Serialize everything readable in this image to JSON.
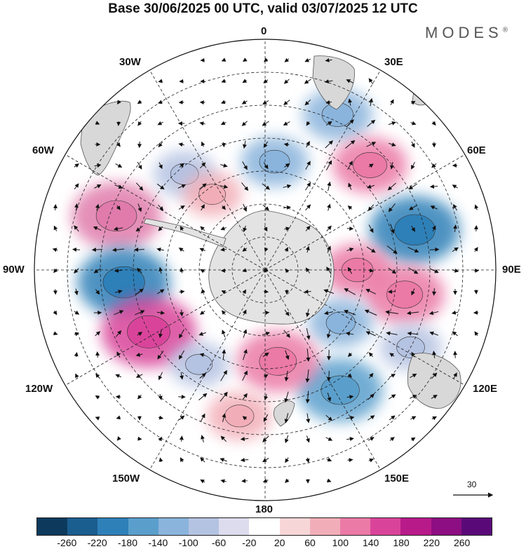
{
  "title": "Base 30/06/2025 00 UTC, valid 03/07/2025 12 UTC",
  "brand": "MODES",
  "brand_mark": "®",
  "longitude_labels": {
    "lon_0": "0",
    "lon_30e": "30E",
    "lon_60e": "60E",
    "lon_90e": "90E",
    "lon_120e": "120E",
    "lon_150e": "150E",
    "lon_180": "180",
    "lon_150w": "150W",
    "lon_120w": "120W",
    "lon_90w": "90W",
    "lon_60w": "60W",
    "lon_30w": "30W"
  },
  "reference_vector": {
    "label": "30",
    "icon": "arrow-right-icon"
  },
  "colorbar": {
    "colors": [
      "#0d3a5c",
      "#1a5e8f",
      "#2e80b8",
      "#5a9fcc",
      "#8ab4dc",
      "#b5c3e2",
      "#dcdcee",
      "#ffffff",
      "#f7d6d8",
      "#f2aeb8",
      "#eb7aa6",
      "#d9449a",
      "#b81a8a",
      "#8c0e82",
      "#5a0a78"
    ],
    "labels": [
      "-260",
      "-220",
      "-180",
      "-140",
      "-100",
      "-60",
      "-20",
      "20",
      "60",
      "100",
      "140",
      "180",
      "220",
      "260"
    ]
  },
  "anomaly_centers": [
    {
      "lon_deg": -70,
      "lat_deg": -42,
      "value": 190,
      "color": "#e07bab"
    },
    {
      "lon_deg": -95,
      "lat_deg": -47,
      "value": -200,
      "color": "#2e80b8"
    },
    {
      "lon_deg": -118,
      "lat_deg": -50,
      "value": 210,
      "color": "#d9449a"
    },
    {
      "lon_deg": -40,
      "lat_deg": -52,
      "value": -80,
      "color": "#b5c3e2"
    },
    {
      "lon_deg": -35,
      "lat_deg": -62,
      "value": 70,
      "color": "#f2aeb8"
    },
    {
      "lon_deg": 5,
      "lat_deg": -57,
      "value": -100,
      "color": "#8ab4dc"
    },
    {
      "lon_deg": 25,
      "lat_deg": -38,
      "value": -110,
      "color": "#8ab4dc"
    },
    {
      "lon_deg": 45,
      "lat_deg": -45,
      "value": 130,
      "color": "#eb7aa6"
    },
    {
      "lon_deg": 75,
      "lat_deg": -43,
      "value": -190,
      "color": "#2e80b8"
    },
    {
      "lon_deg": 100,
      "lat_deg": -47,
      "value": 150,
      "color": "#eb7aa6"
    },
    {
      "lon_deg": 90,
      "lat_deg": -62,
      "value": 110,
      "color": "#eb7aa6"
    },
    {
      "lon_deg": 125,
      "lat_deg": -62,
      "value": -90,
      "color": "#8ab4dc"
    },
    {
      "lon_deg": 148,
      "lat_deg": -47,
      "value": -170,
      "color": "#5a9fcc"
    },
    {
      "lon_deg": 172,
      "lat_deg": -62,
      "value": 160,
      "color": "#eb7aa6"
    },
    {
      "lon_deg": -170,
      "lat_deg": -45,
      "value": 90,
      "color": "#f2aeb8"
    },
    {
      "lon_deg": -145,
      "lat_deg": -55,
      "value": -70,
      "color": "#b5c3e2"
    },
    {
      "lon_deg": 118,
      "lat_deg": -40,
      "value": -80,
      "color": "#b5c3e2"
    }
  ]
}
